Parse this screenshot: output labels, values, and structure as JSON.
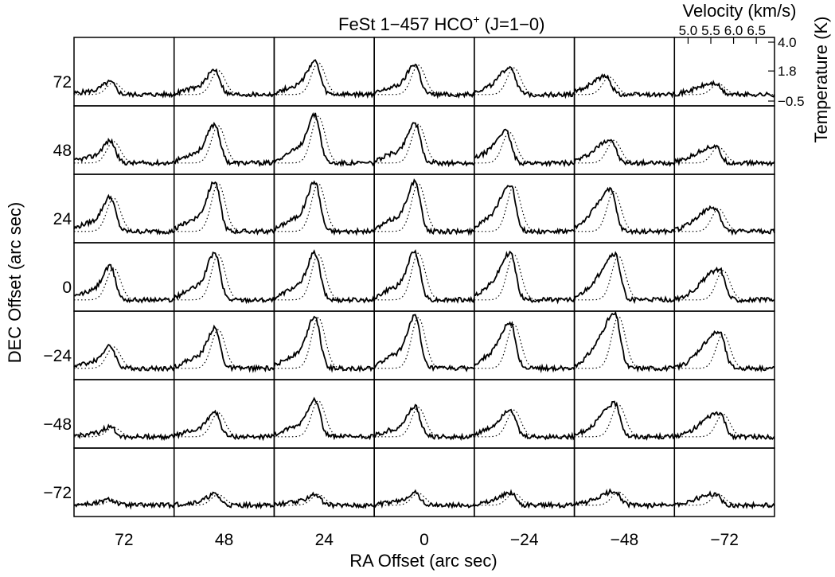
{
  "chart_data": {
    "type": "line",
    "title": "FeSt 1−457 HCO",
    "title_sup": "+",
    "title_suffix": " (J=1−0)",
    "xlabel": "RA Offset (arc sec)",
    "ylabel": "DEC Offset (arc sec)",
    "x_ticks": [
      "72",
      "48",
      "24",
      "0",
      "−24",
      "−48",
      "−72"
    ],
    "y_ticks": [
      "72",
      "48",
      "24",
      "0",
      "−24",
      "−48",
      "−72"
    ],
    "inset_xlabel": "Velocity (km/s)",
    "inset_xticks": [
      "5.0",
      "5.5",
      "6.0",
      "6.5"
    ],
    "inset_ylabel": "Temperature (K)",
    "inset_yticks": [
      "4.0",
      "1.8",
      "−0.5"
    ],
    "velocity_range_kms": [
      4.7,
      6.9
    ],
    "temperature_range_K": [
      -0.5,
      4.0
    ],
    "grid_rows": 7,
    "grid_cols": 7,
    "series_styles": [
      "solid",
      "dotted"
    ],
    "peak_temperature_K": [
      [
        0.9,
        1.8,
        2.4,
        2.2,
        2.0,
        1.3,
        0.8
      ],
      [
        1.6,
        2.8,
        3.5,
        2.9,
        2.3,
        1.7,
        1.2
      ],
      [
        2.5,
        3.6,
        3.6,
        3.6,
        3.4,
        3.0,
        1.7
      ],
      [
        2.4,
        3.4,
        3.4,
        3.5,
        3.4,
        3.3,
        2.2
      ],
      [
        1.6,
        2.9,
        3.8,
        3.8,
        3.3,
        3.9,
        2.6
      ],
      [
        0.7,
        1.8,
        2.7,
        2.2,
        2.0,
        2.4,
        1.7
      ],
      [
        0.4,
        0.8,
        0.8,
        0.9,
        0.9,
        1.0,
        0.8
      ]
    ],
    "peak_velocity_kms": [
      [
        5.5,
        5.6,
        5.6,
        5.6,
        5.5,
        5.4,
        5.6
      ],
      [
        5.5,
        5.6,
        5.6,
        5.6,
        5.4,
        5.5,
        5.6
      ],
      [
        5.5,
        5.6,
        5.6,
        5.6,
        5.5,
        5.5,
        5.6
      ],
      [
        5.5,
        5.6,
        5.6,
        5.6,
        5.5,
        5.6,
        5.7
      ],
      [
        5.5,
        5.6,
        5.6,
        5.6,
        5.5,
        5.6,
        5.7
      ],
      [
        5.5,
        5.6,
        5.6,
        5.6,
        5.5,
        5.6,
        5.7
      ],
      [
        5.5,
        5.6,
        5.6,
        5.6,
        5.5,
        5.6,
        5.6
      ]
    ]
  }
}
